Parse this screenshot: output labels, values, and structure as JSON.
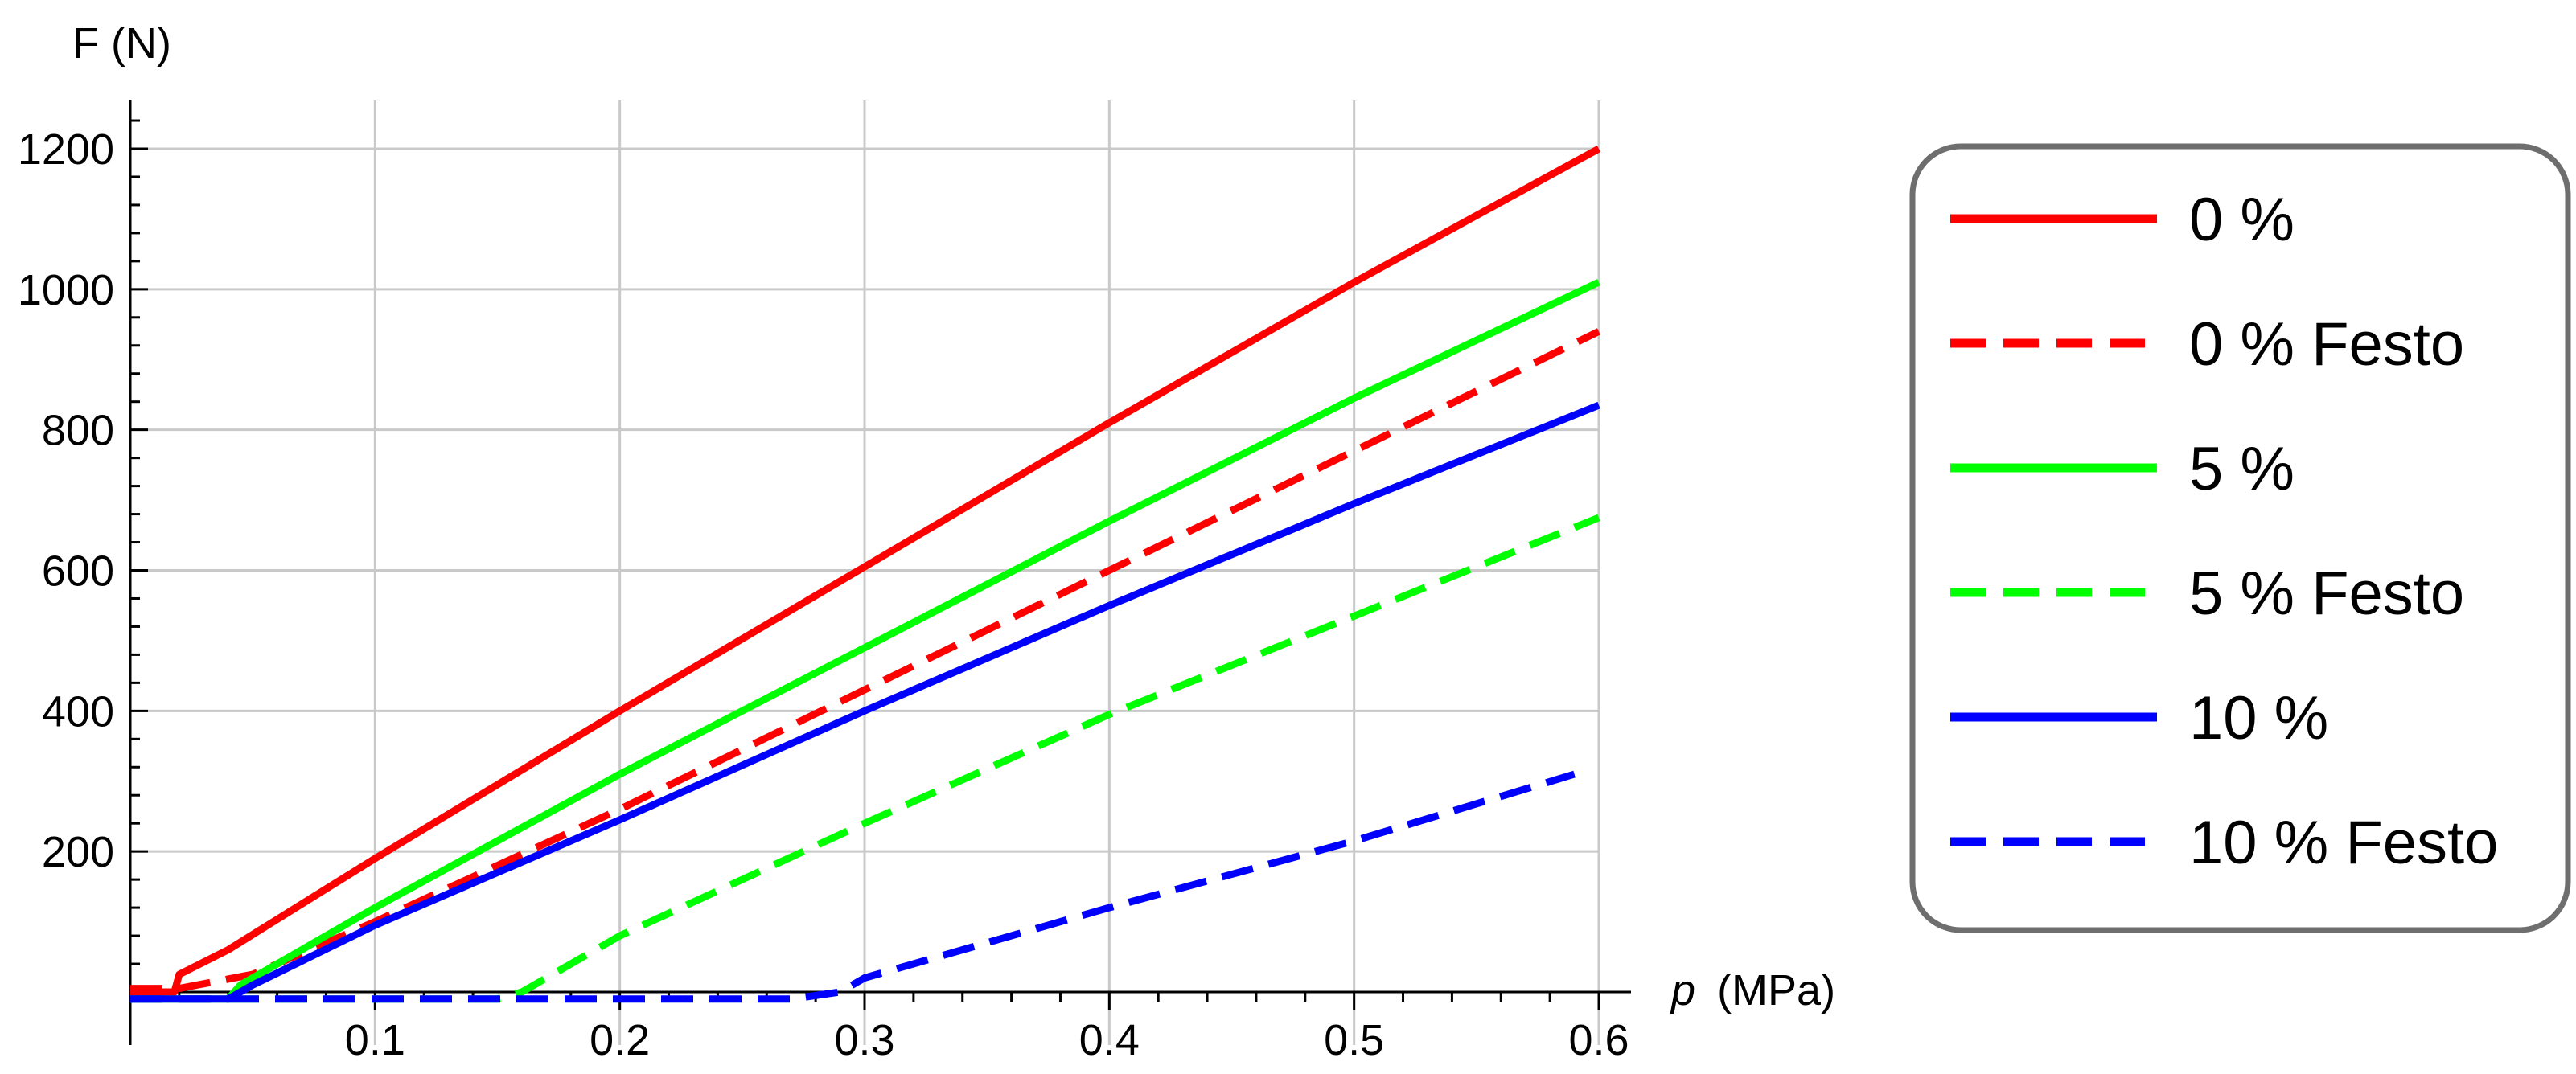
{
  "chart_data": {
    "type": "line",
    "xlabel_italic": "p",
    "xlabel_unit": "(MPa)",
    "ylabel": "F (N)",
    "xlim": [
      0,
      0.6
    ],
    "ylim": [
      -20,
      1260
    ],
    "x_ticks": [
      0.1,
      0.2,
      0.3,
      0.4,
      0.5,
      0.6
    ],
    "y_ticks": [
      200,
      400,
      600,
      800,
      1000,
      1200
    ],
    "x_tick_labels": [
      "0.1",
      "0.2",
      "0.3",
      "0.4",
      "0.5",
      "0.6"
    ],
    "y_tick_labels": [
      "200",
      "400",
      "600",
      "800",
      "1000",
      "1200"
    ],
    "grid": true,
    "legend_position": "right",
    "series": [
      {
        "name": "0 %",
        "color": "#ff0000",
        "dash": "solid",
        "points": [
          [
            0,
            0
          ],
          [
            0.018,
            0
          ],
          [
            0.02,
            25
          ],
          [
            0.04,
            60
          ],
          [
            0.1,
            190
          ],
          [
            0.2,
            400
          ],
          [
            0.3,
            605
          ],
          [
            0.4,
            810
          ],
          [
            0.5,
            1010
          ],
          [
            0.6,
            1200
          ]
        ]
      },
      {
        "name": "0 % Festo",
        "color": "#ff0000",
        "dash": "dashed",
        "points": [
          [
            0,
            5
          ],
          [
            0.02,
            5
          ],
          [
            0.05,
            25
          ],
          [
            0.1,
            100
          ],
          [
            0.2,
            260
          ],
          [
            0.3,
            430
          ],
          [
            0.4,
            600
          ],
          [
            0.5,
            770
          ],
          [
            0.6,
            940
          ]
        ]
      },
      {
        "name": "5 %",
        "color": "#00ff00",
        "dash": "solid",
        "points": [
          [
            0,
            -10
          ],
          [
            0.04,
            -10
          ],
          [
            0.045,
            10
          ],
          [
            0.1,
            120
          ],
          [
            0.2,
            310
          ],
          [
            0.3,
            490
          ],
          [
            0.4,
            670
          ],
          [
            0.5,
            845
          ],
          [
            0.6,
            1010
          ]
        ]
      },
      {
        "name": "5 % Festo",
        "color": "#00ff00",
        "dash": "dashed",
        "points": [
          [
            0,
            -10
          ],
          [
            0.15,
            -10
          ],
          [
            0.16,
            0
          ],
          [
            0.2,
            80
          ],
          [
            0.3,
            240
          ],
          [
            0.4,
            395
          ],
          [
            0.5,
            535
          ],
          [
            0.6,
            675
          ]
        ]
      },
      {
        "name": "10 %",
        "color": "#0000ff",
        "dash": "solid",
        "points": [
          [
            0,
            -10
          ],
          [
            0.04,
            -10
          ],
          [
            0.05,
            10
          ],
          [
            0.1,
            95
          ],
          [
            0.2,
            245
          ],
          [
            0.3,
            400
          ],
          [
            0.4,
            550
          ],
          [
            0.5,
            695
          ],
          [
            0.6,
            835
          ]
        ]
      },
      {
        "name": "10 % Festo",
        "color": "#0000ff",
        "dash": "dashed",
        "points": [
          [
            0,
            -10
          ],
          [
            0.27,
            -10
          ],
          [
            0.29,
            0
          ],
          [
            0.3,
            20
          ],
          [
            0.4,
            120
          ],
          [
            0.5,
            215
          ],
          [
            0.59,
            310
          ]
        ]
      }
    ]
  }
}
